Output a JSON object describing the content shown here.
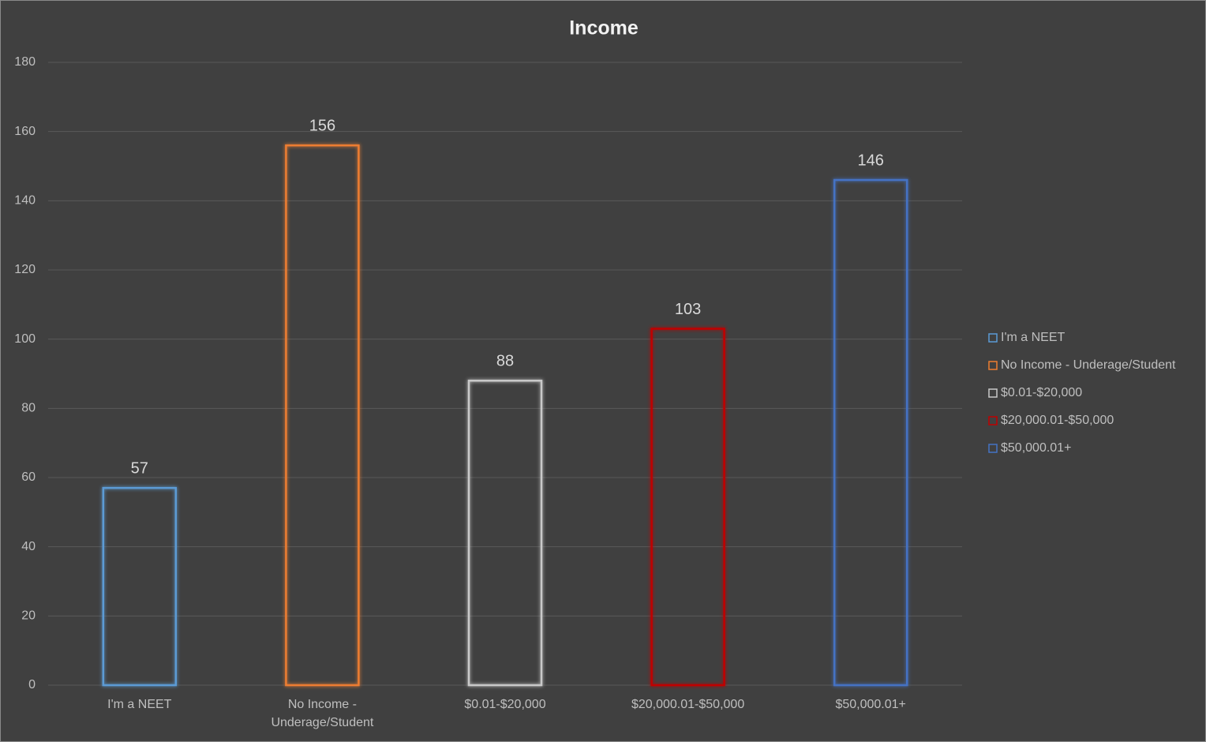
{
  "chart_data": {
    "type": "bar",
    "title": "Income",
    "categories": [
      "I'm a NEET",
      "No Income - Underage/Student",
      "$0.01-$20,000",
      "$20,000.01-$50,000",
      "$50,000.01+"
    ],
    "values": [
      57,
      156,
      88,
      103,
      146
    ],
    "colors": [
      "#5b9bd5",
      "#ed7d31",
      "#c9c9c9",
      "#c00000",
      "#4472c4"
    ],
    "ylim": [
      0,
      180
    ],
    "yticks": [
      0,
      20,
      40,
      60,
      80,
      100,
      120,
      140,
      160,
      180
    ],
    "grid": true,
    "legend": "right"
  }
}
